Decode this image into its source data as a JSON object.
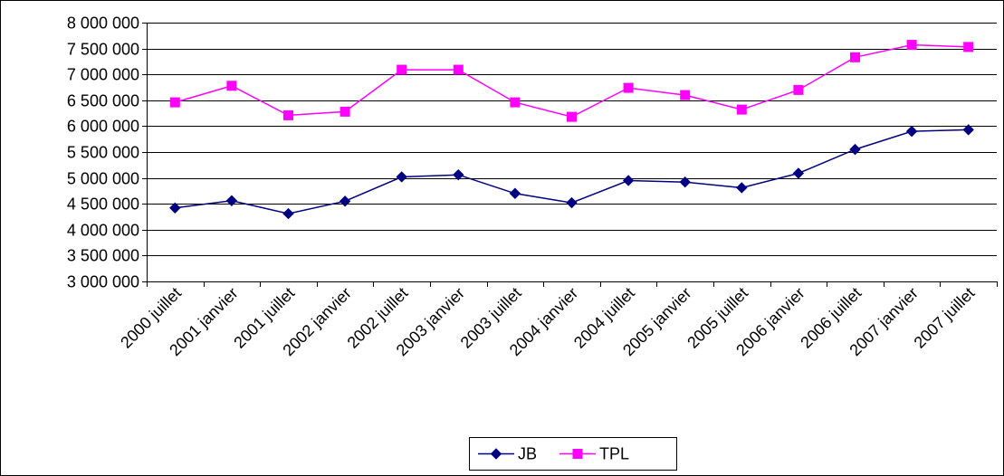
{
  "chart_data": {
    "type": "line",
    "categories": [
      "2000 juillet",
      "2001 janvier",
      "2001 juillet",
      "2002 janvier",
      "2002 juillet",
      "2003 janvier",
      "2003 juillet",
      "2004 janvier",
      "2004 juillet",
      "2005 janvier",
      "2005 juillet",
      "2006 janvier",
      "2006 juillet",
      "2007 janvier",
      "2007 juillet"
    ],
    "series": [
      {
        "name": "JB",
        "color": "#000080",
        "marker": "diamond",
        "values": [
          4420000,
          4560000,
          4310000,
          4550000,
          5020000,
          5060000,
          4700000,
          4520000,
          4950000,
          4920000,
          4810000,
          5090000,
          5550000,
          5900000,
          5930000
        ]
      },
      {
        "name": "TPL",
        "color": "#ff00ff",
        "marker": "square",
        "values": [
          6460000,
          6780000,
          6210000,
          6280000,
          7090000,
          7090000,
          6460000,
          6180000,
          6740000,
          6600000,
          6320000,
          6700000,
          7330000,
          7570000,
          7530000
        ]
      }
    ],
    "y_ticks": [
      "3 000 000",
      "3 500 000",
      "4 000 000",
      "4 500 000",
      "5 000 000",
      "5 500 000",
      "6 000 000",
      "6 500 000",
      "7 000 000",
      "7 500 000",
      "8 000 000"
    ],
    "ylim": [
      3000000,
      8000000
    ],
    "y_step": 500000,
    "grid": "horizontal",
    "legend_position": "bottom"
  }
}
